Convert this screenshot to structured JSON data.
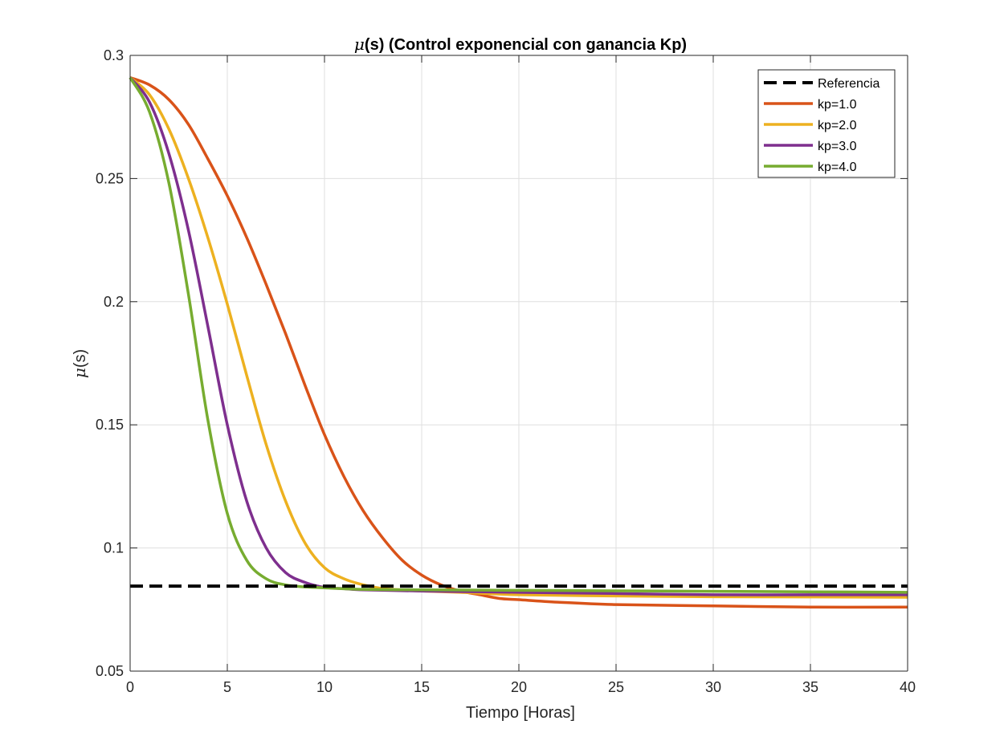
{
  "chart_data": {
    "type": "line",
    "title": "μ(s) (Control exponencial con ganancia Kp)",
    "title_symbol": "μ",
    "title_rest": "(s) (Control exponencial con ganancia Kp)",
    "xlabel": "Tiempo [Horas]",
    "ylabel": "μ(s)",
    "ylabel_symbol": "μ",
    "ylabel_rest": "(s)",
    "xlim": [
      0,
      40
    ],
    "ylim": [
      0.05,
      0.3
    ],
    "xticks": [
      0,
      5,
      10,
      15,
      20,
      25,
      30,
      35,
      40
    ],
    "xtick_labels": [
      "0",
      "5",
      "10",
      "15",
      "20",
      "25",
      "30",
      "35",
      "40"
    ],
    "yticks": [
      0.05,
      0.1,
      0.15,
      0.2,
      0.25,
      0.3
    ],
    "ytick_labels": [
      "0.05",
      "0.1",
      "0.15",
      "0.2",
      "0.25",
      "0.3"
    ],
    "grid": true,
    "legend_position": "top-right",
    "series": [
      {
        "name": "Referencia",
        "color": "#000000",
        "style": "dashed",
        "x": [
          0,
          40
        ],
        "y": [
          0.0845,
          0.0845
        ]
      },
      {
        "name": "kp=1.0",
        "color": "#D95319",
        "style": "solid",
        "x": [
          0,
          1,
          2,
          3,
          4,
          5,
          6,
          7,
          8,
          9,
          10,
          11,
          12,
          13,
          14,
          15,
          16,
          17,
          18,
          19,
          20,
          22,
          25,
          30,
          35,
          40
        ],
        "y": [
          0.291,
          0.288,
          0.282,
          0.272,
          0.258,
          0.243,
          0.226,
          0.207,
          0.187,
          0.166,
          0.146,
          0.129,
          0.115,
          0.104,
          0.095,
          0.089,
          0.085,
          0.0825,
          0.081,
          0.0795,
          0.079,
          0.078,
          0.077,
          0.0765,
          0.076,
          0.076
        ]
      },
      {
        "name": "kp=2.0",
        "color": "#EDB120",
        "style": "solid",
        "x": [
          0,
          1,
          2,
          3,
          4,
          5,
          6,
          7,
          8,
          9,
          10,
          11,
          12,
          13,
          14,
          15,
          17,
          20,
          25,
          30,
          35,
          40
        ],
        "y": [
          0.291,
          0.284,
          0.27,
          0.25,
          0.226,
          0.199,
          0.17,
          0.142,
          0.119,
          0.102,
          0.092,
          0.0875,
          0.085,
          0.0835,
          0.083,
          0.0825,
          0.082,
          0.081,
          0.0805,
          0.0802,
          0.0801,
          0.08
        ]
      },
      {
        "name": "kp=3.0",
        "color": "#7E2F8E",
        "style": "solid",
        "x": [
          0,
          1,
          2,
          3,
          4,
          5,
          6,
          7,
          8,
          9,
          10,
          11,
          12,
          15,
          20,
          25,
          30,
          35,
          40
        ],
        "y": [
          0.291,
          0.281,
          0.26,
          0.229,
          0.19,
          0.15,
          0.119,
          0.1,
          0.09,
          0.086,
          0.084,
          0.0835,
          0.083,
          0.0825,
          0.082,
          0.0815,
          0.081,
          0.081,
          0.081
        ]
      },
      {
        "name": "kp=4.0",
        "color": "#77AC30",
        "style": "solid",
        "x": [
          0,
          1,
          2,
          3,
          4,
          5,
          6,
          7,
          8,
          9,
          10,
          12,
          15,
          20,
          25,
          30,
          35,
          40
        ],
        "y": [
          0.291,
          0.277,
          0.248,
          0.203,
          0.152,
          0.114,
          0.095,
          0.0875,
          0.085,
          0.0842,
          0.0838,
          0.0832,
          0.083,
          0.0828,
          0.0826,
          0.0824,
          0.0822,
          0.082
        ]
      }
    ]
  }
}
